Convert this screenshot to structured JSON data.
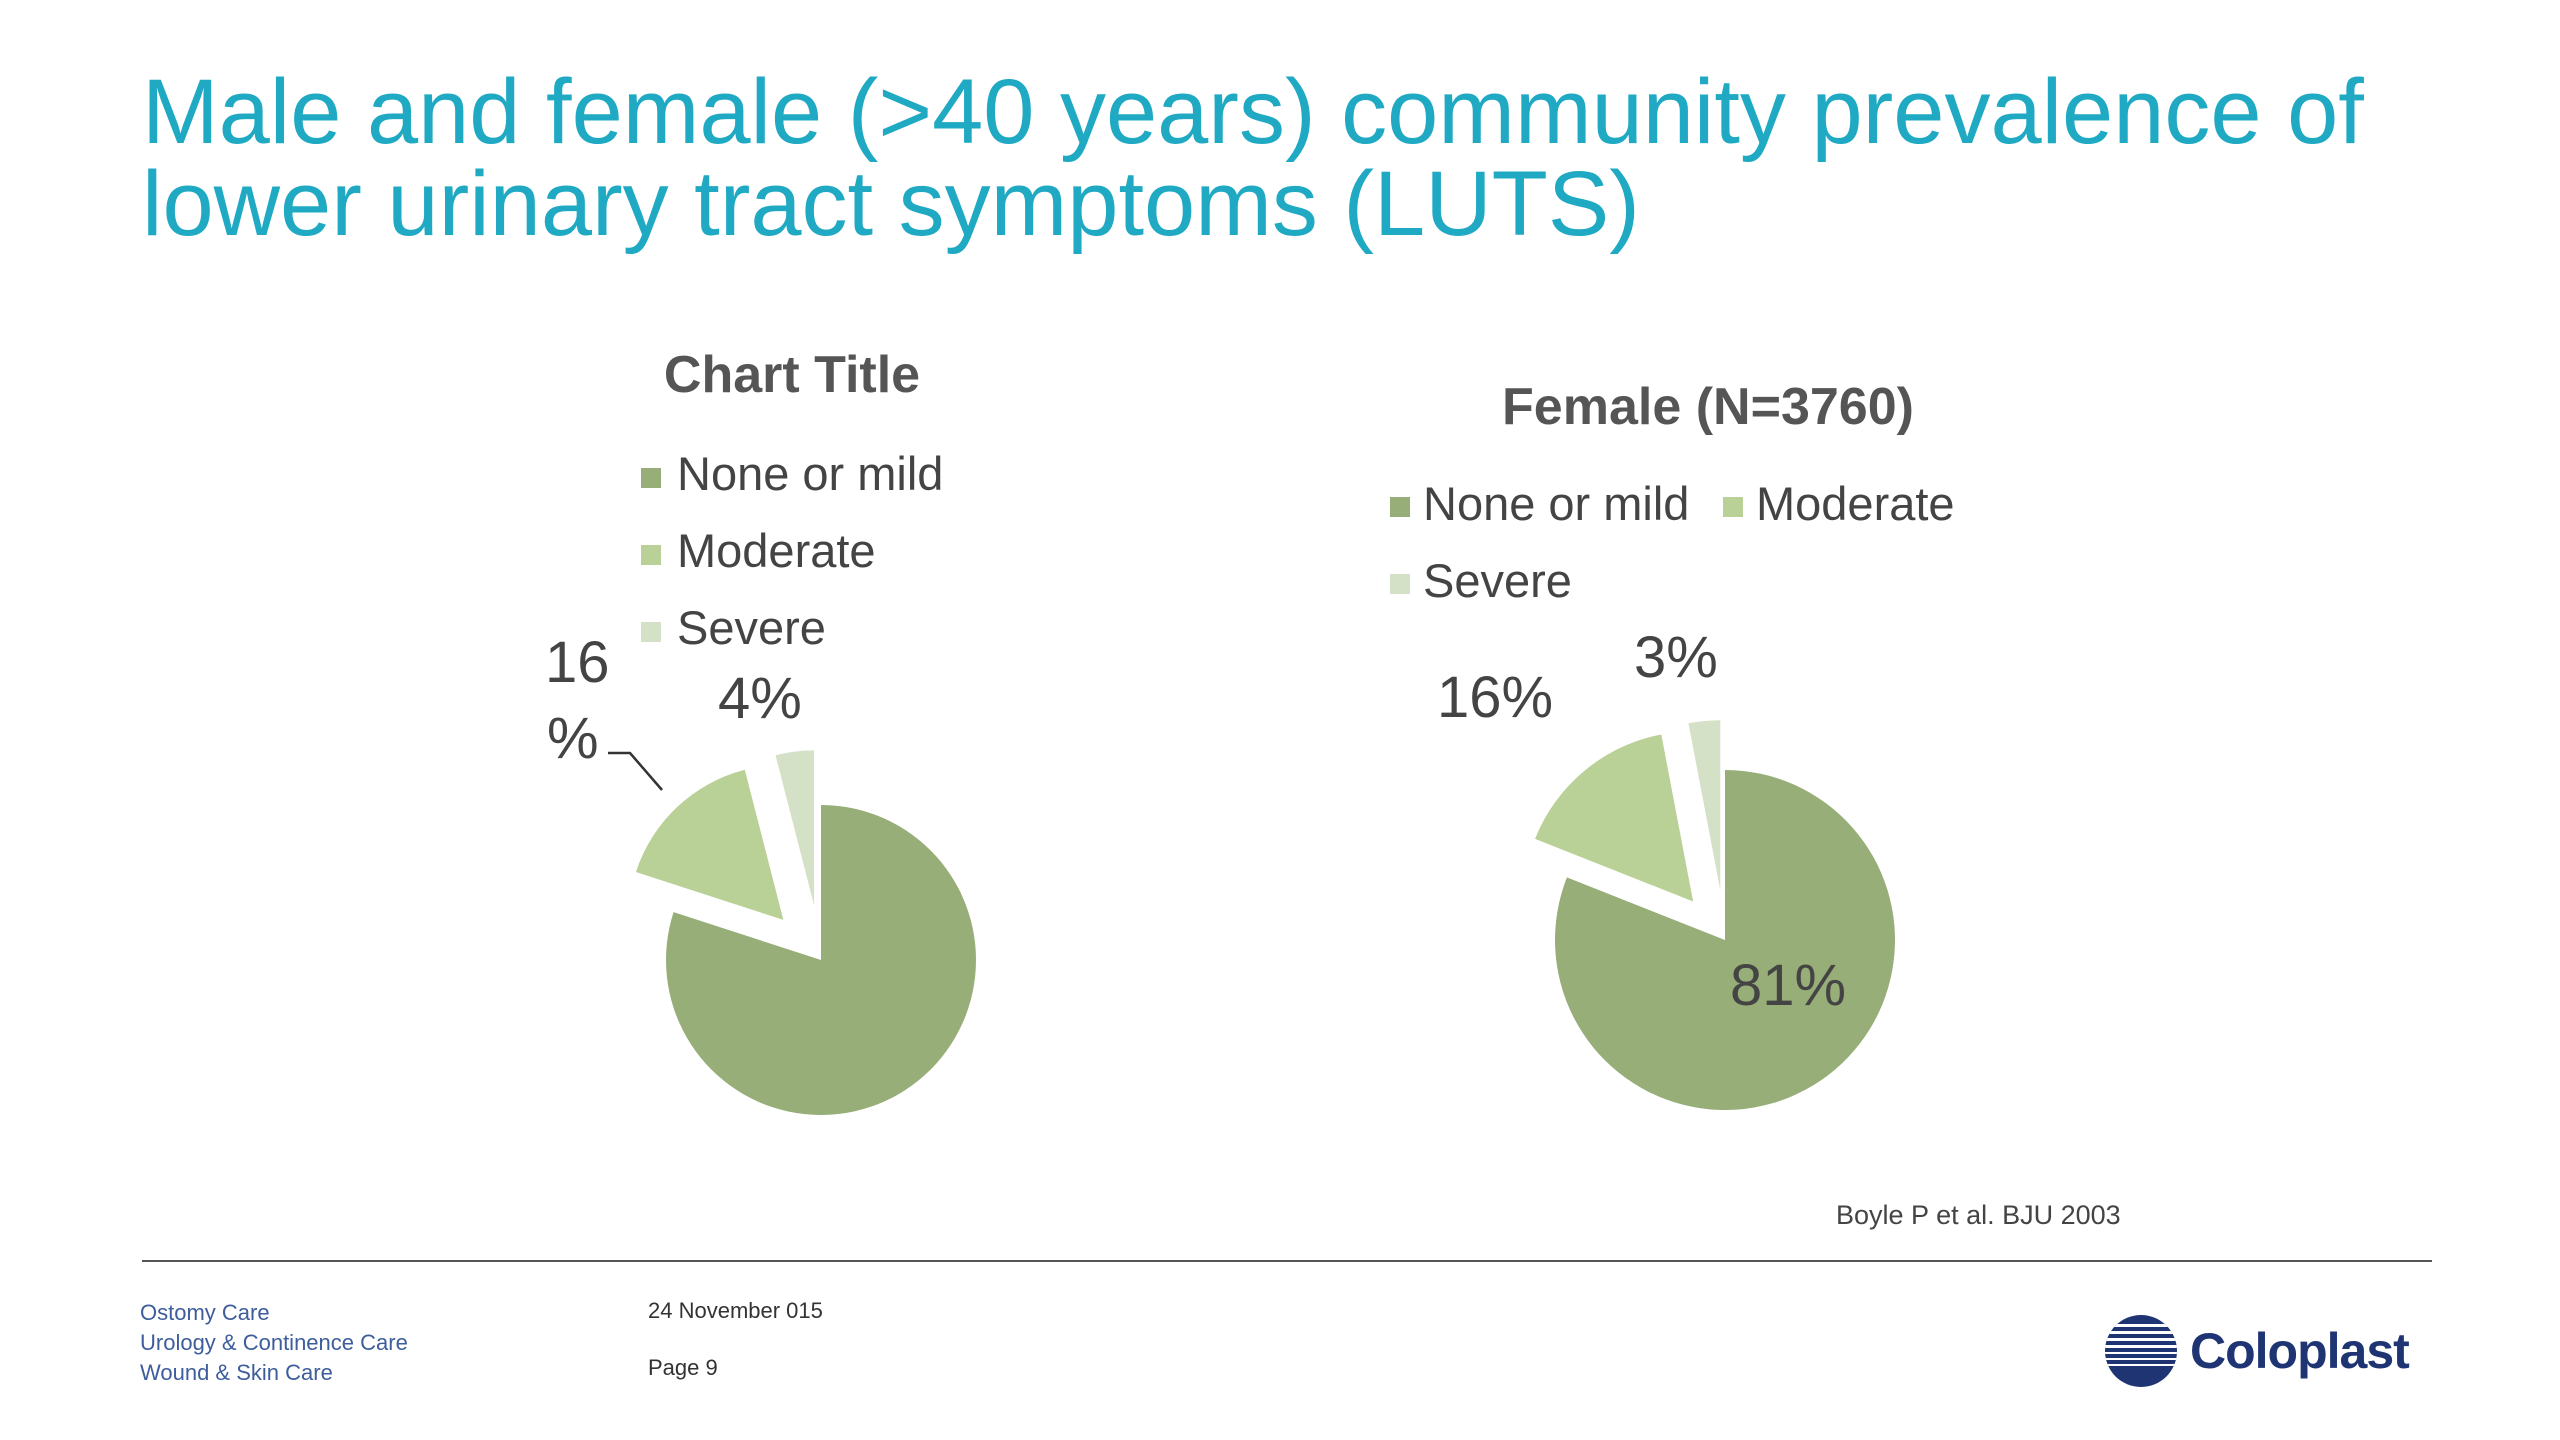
{
  "title": {
    "line1": "Male and female (>40 years) community prevalence of",
    "line2": "lower urinary tract symptoms (LUTS)"
  },
  "colors": {
    "title": "#1fa9c3",
    "none_or_mild": "#97ae78",
    "moderate": "#b9d197",
    "severe": "#d5e1c7",
    "logo": "#1e3473"
  },
  "chart_data": [
    {
      "type": "pie",
      "title": "Chart Title",
      "categories": [
        "None or mild",
        "Moderate",
        "Severe"
      ],
      "values": [
        80,
        16,
        4
      ],
      "data_labels": [
        "",
        "16\n%",
        "4%"
      ],
      "legend": "top"
    },
    {
      "type": "pie",
      "title": "Female (N=3760)",
      "categories": [
        "None or mild",
        "Moderate",
        "Severe"
      ],
      "values": [
        81,
        16,
        3
      ],
      "data_labels": [
        "81%",
        "16%",
        "3%"
      ],
      "legend": "top"
    }
  ],
  "citation": "Boyle P et al. BJU 2003",
  "footer": {
    "divisions": [
      "Ostomy Care",
      "Urology & Continence Care",
      "Wound & Skin Care"
    ],
    "date": "24 November  015",
    "page": "Page 9"
  },
  "logo": {
    "name": "Coloplast",
    "icon": "coloplast-globe-icon"
  }
}
